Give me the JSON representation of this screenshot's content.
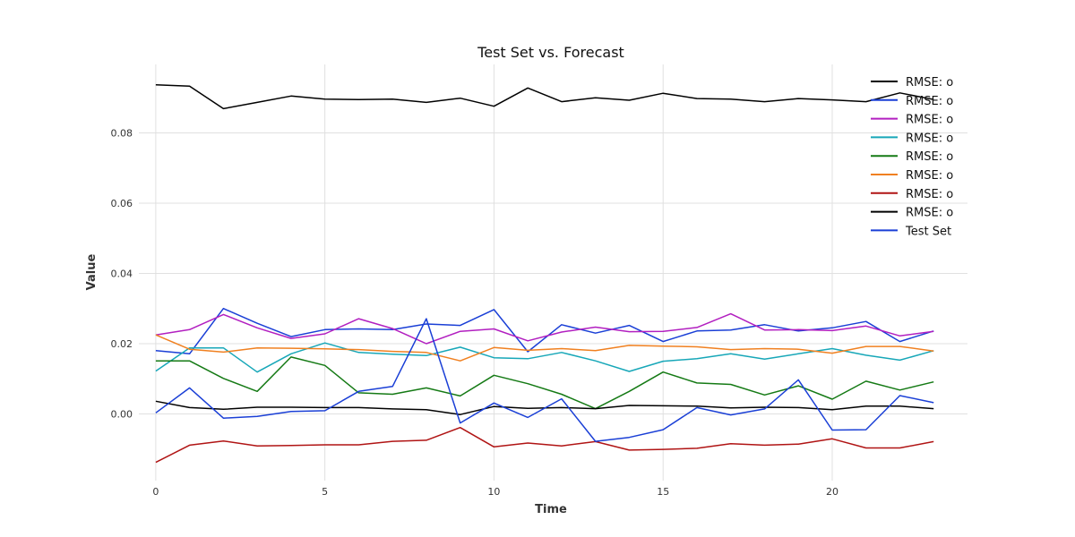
{
  "chart_data": {
    "type": "line",
    "title": "Test Set vs. Forecast",
    "xlabel": "Time",
    "ylabel": "Value",
    "xlim": [
      -0.5,
      24
    ],
    "ylim": [
      -0.019,
      0.0995
    ],
    "xticks": [
      0,
      5,
      10,
      15,
      20
    ],
    "yticks": [
      0.0,
      0.02,
      0.04,
      0.06,
      0.08
    ],
    "ytick_labels": [
      "0.00",
      "0.02",
      "0.04",
      "0.06",
      "0.08"
    ],
    "grid": true,
    "legend_position": "top-right",
    "x": [
      0,
      1,
      2,
      3,
      4,
      5,
      6,
      7,
      8,
      9,
      10,
      11,
      12,
      13,
      14,
      15,
      16,
      17,
      18,
      19,
      20,
      21,
      22,
      23
    ],
    "series": [
      {
        "name": "RMSE: o",
        "color": "#000000",
        "values": [
          0.0937,
          0.0933,
          0.0869,
          0.0887,
          0.0905,
          0.0896,
          0.0895,
          0.0896,
          0.0887,
          0.0899,
          0.0876,
          0.0928,
          0.0889,
          0.09,
          0.0893,
          0.0913,
          0.0898,
          0.0896,
          0.0889,
          0.0898,
          0.0894,
          0.0889,
          0.0914,
          0.0895
        ]
      },
      {
        "name": "RMSE: o",
        "color": "#1a3fd6",
        "values": [
          0.018,
          0.0171,
          0.03,
          0.0258,
          0.022,
          0.024,
          0.0242,
          0.024,
          0.0256,
          0.0252,
          0.0297,
          0.0177,
          0.0254,
          0.023,
          0.0252,
          0.0206,
          0.0236,
          0.0239,
          0.0254,
          0.0236,
          0.0245,
          0.0263,
          0.0206,
          0.0236
        ]
      },
      {
        "name": "RMSE: o",
        "color": "#b21fc0",
        "values": [
          0.0225,
          0.024,
          0.0283,
          0.0245,
          0.0215,
          0.0228,
          0.0271,
          0.0243,
          0.02,
          0.0235,
          0.0242,
          0.0208,
          0.0233,
          0.0247,
          0.0234,
          0.0235,
          0.0246,
          0.0285,
          0.0239,
          0.024,
          0.0237,
          0.025,
          0.0222,
          0.0235
        ]
      },
      {
        "name": "RMSE: o",
        "color": "#17a7b8",
        "values": [
          0.0122,
          0.0188,
          0.0188,
          0.0119,
          0.0171,
          0.0202,
          0.0175,
          0.017,
          0.0166,
          0.019,
          0.016,
          0.0157,
          0.0175,
          0.0151,
          0.0121,
          0.015,
          0.0157,
          0.0171,
          0.0156,
          0.0171,
          0.0186,
          0.0167,
          0.0153,
          0.018
        ]
      },
      {
        "name": "RMSE: o",
        "color": "#157a15",
        "values": [
          0.0151,
          0.0151,
          0.0101,
          0.0064,
          0.0162,
          0.0138,
          0.006,
          0.0056,
          0.0074,
          0.0051,
          0.011,
          0.0086,
          0.0056,
          0.0015,
          0.0064,
          0.0119,
          0.0088,
          0.0084,
          0.0054,
          0.008,
          0.0042,
          0.0093,
          0.0068,
          0.0091
        ]
      },
      {
        "name": "RMSE: o",
        "color": "#f08020",
        "values": [
          0.0225,
          0.0184,
          0.0176,
          0.0188,
          0.0187,
          0.0185,
          0.0183,
          0.0178,
          0.0175,
          0.0151,
          0.0189,
          0.0181,
          0.0186,
          0.018,
          0.0195,
          0.0193,
          0.0191,
          0.0183,
          0.0186,
          0.0184,
          0.0173,
          0.0192,
          0.0192,
          0.0179
        ]
      },
      {
        "name": "RMSE: o",
        "color": "#b01414",
        "values": [
          -0.0138,
          -0.0089,
          -0.0077,
          -0.0091,
          -0.009,
          -0.0088,
          -0.0088,
          -0.0078,
          -0.0075,
          -0.0039,
          -0.0094,
          -0.0083,
          -0.0091,
          -0.0079,
          -0.0103,
          -0.0101,
          -0.0098,
          -0.0085,
          -0.0089,
          -0.0086,
          -0.0071,
          -0.0097,
          -0.0097,
          -0.0079
        ]
      },
      {
        "name": "RMSE: o",
        "color": "#000000",
        "values": [
          0.0036,
          0.0018,
          0.0013,
          0.0019,
          0.0019,
          0.0018,
          0.0018,
          0.0014,
          0.0012,
          -0.0002,
          0.0021,
          0.0016,
          0.0018,
          0.0015,
          0.0024,
          0.0023,
          0.0022,
          0.0017,
          0.0019,
          0.0018,
          0.0012,
          0.0022,
          0.0022,
          0.0015
        ]
      },
      {
        "name": "Test Set",
        "color": "#1a3fd6",
        "values": [
          0.0003,
          0.0074,
          -0.0012,
          -0.0007,
          0.0007,
          0.0009,
          0.0064,
          0.0078,
          0.0271,
          -0.0026,
          0.0031,
          -0.001,
          0.0043,
          -0.0078,
          -0.0067,
          -0.0045,
          0.0018,
          -0.0003,
          0.0014,
          0.0097,
          -0.0046,
          -0.0045,
          0.0052,
          0.0032
        ]
      }
    ]
  }
}
